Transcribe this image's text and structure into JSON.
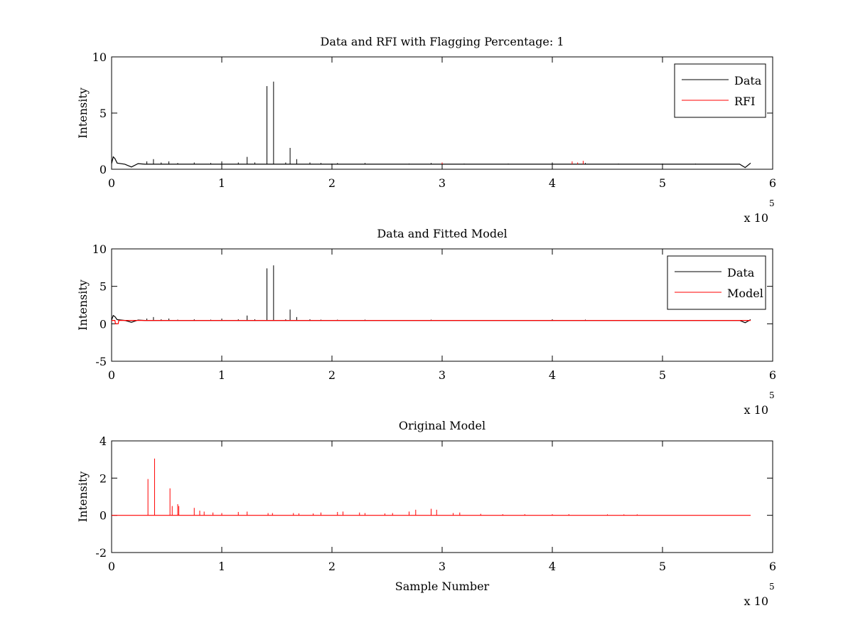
{
  "chart_data": [
    {
      "type": "line",
      "title": "Data and RFI with Flagging Percentage: 1",
      "xlabel": "",
      "ylabel": "Intensity",
      "xlim": [
        0,
        600000
      ],
      "ylim": [
        0,
        10
      ],
      "xticks": [
        0,
        1,
        2,
        3,
        4,
        5,
        6
      ],
      "yticks": [
        0,
        5,
        10
      ],
      "x_exponent_label": "x 10",
      "x_exponent": "5",
      "legend": "top-right",
      "grid": false,
      "series": [
        {
          "name": "Data",
          "color": "#000000",
          "baseline": 0.45,
          "points": [
            [
              0,
              0.5
            ],
            [
              1500,
              1.1
            ],
            [
              3000,
              0.95
            ],
            [
              5000,
              0.55
            ],
            [
              12000,
              0.45
            ],
            [
              18000,
              0.2
            ],
            [
              24000,
              0.5
            ],
            [
              30000,
              0.45
            ],
            [
              570000,
              0.45
            ],
            [
              575000,
              0.15
            ],
            [
              580000,
              0.55
            ]
          ],
          "spikes": [
            [
              32000,
              0.7
            ],
            [
              38000,
              0.9
            ],
            [
              45000,
              0.6
            ],
            [
              52000,
              0.7
            ],
            [
              60000,
              0.55
            ],
            [
              75000,
              0.6
            ],
            [
              90000,
              0.55
            ],
            [
              100000,
              0.7
            ],
            [
              115000,
              0.6
            ],
            [
              123000,
              1.1
            ],
            [
              130000,
              0.6
            ],
            [
              141000,
              7.4
            ],
            [
              147000,
              7.8
            ],
            [
              158000,
              0.6
            ],
            [
              162000,
              1.9
            ],
            [
              168000,
              0.9
            ],
            [
              180000,
              0.6
            ],
            [
              190000,
              0.55
            ],
            [
              205000,
              0.55
            ],
            [
              230000,
              0.55
            ],
            [
              270000,
              0.5
            ],
            [
              290000,
              0.55
            ],
            [
              320000,
              0.5
            ],
            [
              360000,
              0.5
            ],
            [
              400000,
              0.6
            ],
            [
              430000,
              0.55
            ],
            [
              460000,
              0.5
            ],
            [
              500000,
              0.5
            ],
            [
              530000,
              0.5
            ]
          ]
        },
        {
          "name": "RFI",
          "color": "#ff0000",
          "baseline": 0.45,
          "points": [],
          "spikes": [
            [
              300000,
              0.6
            ],
            [
              418000,
              0.7
            ],
            [
              423000,
              0.6
            ],
            [
              428000,
              0.75
            ]
          ]
        }
      ]
    },
    {
      "type": "line",
      "title": "Data and Fitted Model",
      "xlabel": "",
      "ylabel": "Intensity",
      "xlim": [
        0,
        600000
      ],
      "ylim": [
        -5,
        10
      ],
      "xticks": [
        0,
        1,
        2,
        3,
        4,
        5,
        6
      ],
      "yticks": [
        -5,
        0,
        5,
        10
      ],
      "x_exponent_label": "x 10",
      "x_exponent": "5",
      "legend": "top-right",
      "grid": false,
      "series": [
        {
          "name": "Data",
          "color": "#000000",
          "baseline": 0.45,
          "points": [
            [
              0,
              0.5
            ],
            [
              1500,
              1.1
            ],
            [
              3000,
              0.95
            ],
            [
              5000,
              0.55
            ],
            [
              12000,
              0.45
            ],
            [
              18000,
              0.2
            ],
            [
              24000,
              0.5
            ],
            [
              30000,
              0.45
            ],
            [
              570000,
              0.45
            ],
            [
              575000,
              0.15
            ],
            [
              580000,
              0.55
            ]
          ],
          "spikes": [
            [
              32000,
              0.7
            ],
            [
              38000,
              0.9
            ],
            [
              45000,
              0.6
            ],
            [
              52000,
              0.7
            ],
            [
              60000,
              0.55
            ],
            [
              75000,
              0.6
            ],
            [
              90000,
              0.55
            ],
            [
              100000,
              0.7
            ],
            [
              115000,
              0.6
            ],
            [
              123000,
              1.1
            ],
            [
              130000,
              0.6
            ],
            [
              141000,
              7.4
            ],
            [
              147000,
              7.8
            ],
            [
              158000,
              0.6
            ],
            [
              162000,
              1.9
            ],
            [
              168000,
              0.9
            ],
            [
              180000,
              0.6
            ],
            [
              190000,
              0.55
            ],
            [
              205000,
              0.55
            ],
            [
              230000,
              0.55
            ],
            [
              270000,
              0.5
            ],
            [
              290000,
              0.55
            ],
            [
              320000,
              0.5
            ],
            [
              360000,
              0.5
            ],
            [
              400000,
              0.6
            ],
            [
              430000,
              0.55
            ],
            [
              460000,
              0.5
            ],
            [
              500000,
              0.5
            ],
            [
              530000,
              0.5
            ]
          ]
        },
        {
          "name": "Model",
          "color": "#ff0000",
          "baseline": 0.45,
          "points": [
            [
              0,
              0.45
            ],
            [
              3000,
              0.45
            ],
            [
              3500,
              0.0
            ],
            [
              6000,
              0.0
            ],
            [
              6500,
              0.45
            ],
            [
              580000,
              0.45
            ]
          ],
          "spikes": []
        }
      ]
    },
    {
      "type": "line",
      "title": "Original Model",
      "xlabel": "Sample Number",
      "ylabel": "Intensity",
      "xlim": [
        0,
        600000
      ],
      "ylim": [
        -2,
        4
      ],
      "xticks": [
        0,
        1,
        2,
        3,
        4,
        5,
        6
      ],
      "yticks": [
        -2,
        0,
        2,
        4
      ],
      "x_exponent_label": "x 10",
      "x_exponent": "5",
      "legend": "none",
      "grid": false,
      "series": [
        {
          "name": "",
          "color": "#ff0000",
          "baseline": 0.0,
          "points": [
            [
              0,
              0.0
            ],
            [
              580000,
              0.0
            ]
          ],
          "spikes": [
            [
              33000,
              1.95
            ],
            [
              39000,
              3.05
            ],
            [
              53000,
              1.45
            ],
            [
              55000,
              0.5
            ],
            [
              60000,
              0.6
            ],
            [
              61000,
              0.5
            ],
            [
              75000,
              0.4
            ],
            [
              80000,
              0.25
            ],
            [
              84000,
              0.2
            ],
            [
              92000,
              0.15
            ],
            [
              100000,
              0.12
            ],
            [
              115000,
              0.18
            ],
            [
              123000,
              0.2
            ],
            [
              142000,
              0.12
            ],
            [
              146000,
              0.12
            ],
            [
              165000,
              0.12
            ],
            [
              170000,
              0.1
            ],
            [
              183000,
              0.1
            ],
            [
              190000,
              0.15
            ],
            [
              205000,
              0.18
            ],
            [
              210000,
              0.2
            ],
            [
              225000,
              0.15
            ],
            [
              230000,
              0.12
            ],
            [
              248000,
              0.1
            ],
            [
              255000,
              0.12
            ],
            [
              270000,
              0.2
            ],
            [
              276000,
              0.3
            ],
            [
              290000,
              0.35
            ],
            [
              295000,
              0.3
            ],
            [
              310000,
              0.12
            ],
            [
              316000,
              0.15
            ],
            [
              335000,
              0.08
            ],
            [
              355000,
              0.06
            ],
            [
              375000,
              0.06
            ],
            [
              400000,
              0.06
            ],
            [
              415000,
              0.06
            ],
            [
              450000,
              0.05
            ],
            [
              465000,
              0.05
            ],
            [
              477000,
              0.05
            ]
          ]
        }
      ]
    }
  ]
}
